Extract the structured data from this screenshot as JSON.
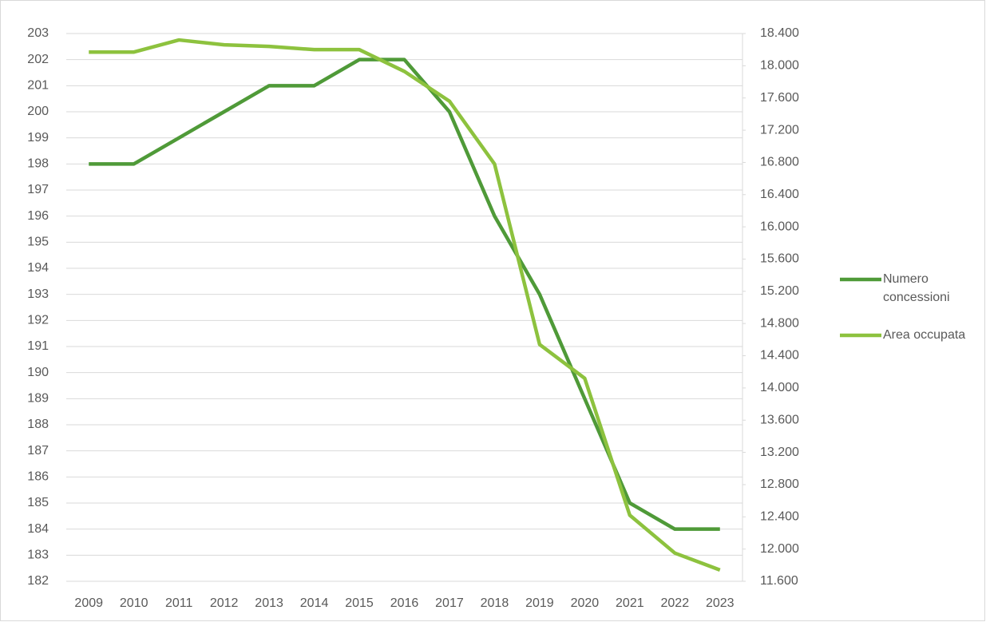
{
  "chart_data": {
    "type": "line",
    "categories": [
      "2009",
      "2010",
      "2011",
      "2012",
      "2013",
      "2014",
      "2015",
      "2016",
      "2017",
      "2018",
      "2019",
      "2020",
      "2021",
      "2022",
      "2023"
    ],
    "series": [
      {
        "name": "Numero concessioni",
        "color": "#4f9a38",
        "values": [
          198,
          198,
          199,
          200,
          201,
          201,
          202,
          202,
          200,
          196,
          193,
          189,
          185,
          184,
          184
        ]
      },
      {
        "name": "Area occupata",
        "color": "#8dc23e",
        "axis": "y2",
        "values": [
          18170,
          18170,
          18320,
          18260,
          18240,
          18200,
          18200,
          17930,
          17560,
          16780,
          14540,
          14120,
          12420,
          11950,
          11740
        ]
      }
    ],
    "ylim": [
      182,
      203
    ],
    "yticks": [
      182,
      183,
      184,
      185,
      186,
      187,
      188,
      189,
      190,
      191,
      192,
      193,
      194,
      195,
      196,
      197,
      198,
      199,
      200,
      201,
      202,
      203
    ],
    "y2lim": [
      11600,
      18400
    ],
    "y2ticks": [
      {
        "value": 11600,
        "label": "11.600"
      },
      {
        "value": 12000,
        "label": "12.000"
      },
      {
        "value": 12400,
        "label": "12.400"
      },
      {
        "value": 12800,
        "label": "12.800"
      },
      {
        "value": 13200,
        "label": "13.200"
      },
      {
        "value": 13600,
        "label": "13.600"
      },
      {
        "value": 14000,
        "label": "14.000"
      },
      {
        "value": 14400,
        "label": "14.400"
      },
      {
        "value": 14800,
        "label": "14.800"
      },
      {
        "value": 15200,
        "label": "15.200"
      },
      {
        "value": 15600,
        "label": "15.600"
      },
      {
        "value": 16000,
        "label": "16.000"
      },
      {
        "value": 16400,
        "label": "16.400"
      },
      {
        "value": 16800,
        "label": "16.800"
      },
      {
        "value": 17200,
        "label": "17.200"
      },
      {
        "value": 17600,
        "label": "17.600"
      },
      {
        "value": 18000,
        "label": "18.000"
      },
      {
        "value": 18400,
        "label": "18.400"
      }
    ],
    "grid": true,
    "legend": "right"
  }
}
